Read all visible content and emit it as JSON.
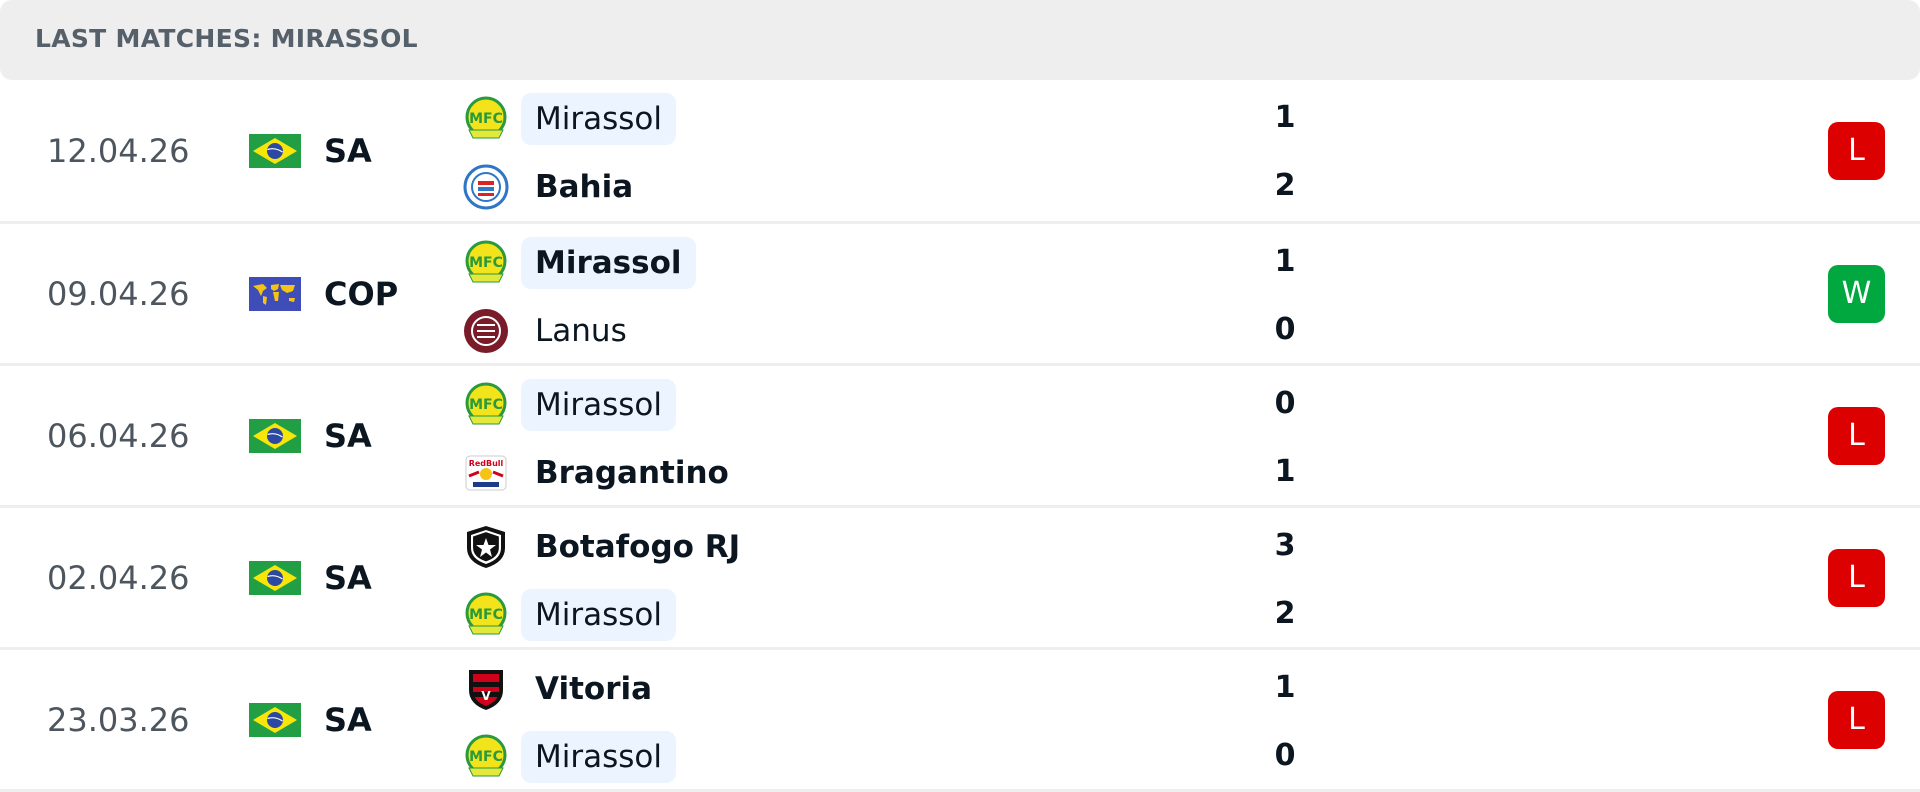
{
  "header": {
    "title": "LAST MATCHES: MIRASSOL"
  },
  "colors": {
    "loss": "#dd0000",
    "win": "#00a83f",
    "highlight": "#ebf4ff"
  },
  "matches": [
    {
      "date": "12.04.26",
      "flag": "brazil-flag",
      "competition": "SA",
      "home": {
        "name": "Mirassol",
        "score": "1",
        "logo": "mirassol"
      },
      "away": {
        "name": "Bahia",
        "score": "2",
        "logo": "bahia"
      },
      "result": "L"
    },
    {
      "date": "09.04.26",
      "flag": "world-flag",
      "competition": "COP",
      "home": {
        "name": "Mirassol",
        "score": "1",
        "logo": "mirassol"
      },
      "away": {
        "name": "Lanus",
        "score": "0",
        "logo": "lanus"
      },
      "result": "W"
    },
    {
      "date": "06.04.26",
      "flag": "brazil-flag",
      "competition": "SA",
      "home": {
        "name": "Mirassol",
        "score": "0",
        "logo": "mirassol"
      },
      "away": {
        "name": "Bragantino",
        "score": "1",
        "logo": "bragantino"
      },
      "result": "L"
    },
    {
      "date": "02.04.26",
      "flag": "brazil-flag",
      "competition": "SA",
      "home": {
        "name": "Botafogo RJ",
        "score": "3",
        "logo": "botafogo"
      },
      "away": {
        "name": "Mirassol",
        "score": "2",
        "logo": "mirassol"
      },
      "result": "L"
    },
    {
      "date": "23.03.26",
      "flag": "brazil-flag",
      "competition": "SA",
      "home": {
        "name": "Vitoria",
        "score": "1",
        "logo": "vitoria"
      },
      "away": {
        "name": "Mirassol",
        "score": "0",
        "logo": "mirassol"
      },
      "result": "L"
    }
  ]
}
